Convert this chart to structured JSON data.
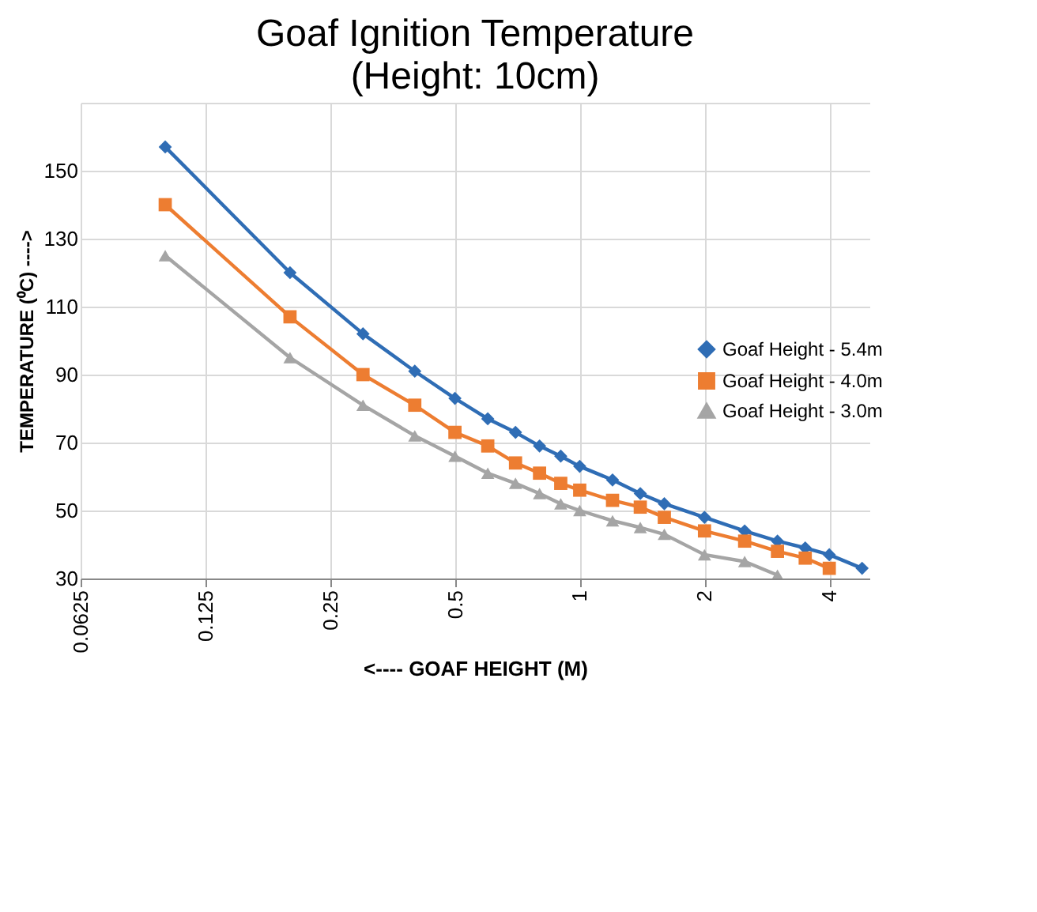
{
  "chart_data": {
    "type": "line",
    "title": "Goaf Ignition Temperature",
    "subtitle": "(Height: 10cm)",
    "xlabel": "<---- GOAF HEIGHT (M)",
    "ylabel": "TEMPERATURE (⁰C) ---->",
    "log": "x",
    "grid": true,
    "legend": "right",
    "line_style": "solid",
    "xlim": [
      0.0625,
      5
    ],
    "xticks": [
      0.0625,
      0.125,
      0.25,
      0.5,
      1,
      2,
      4
    ],
    "ylim": [
      30,
      170
    ],
    "yticks": [
      30,
      50,
      70,
      90,
      110,
      130,
      150,
      {
        "value": 170,
        "label": null
      }
    ],
    "series": [
      {
        "name": "Goaf Height - 5.4m",
        "color": "#2f6db5",
        "marker": "diamond",
        "x": [
          0.1,
          0.2,
          0.3,
          0.4,
          0.5,
          0.6,
          0.7,
          0.8,
          0.9,
          1.0,
          1.2,
          1.4,
          1.6,
          2.0,
          2.5,
          3.0,
          3.5,
          4.0,
          4.8
        ],
        "values": [
          157,
          120,
          102,
          91,
          83,
          77,
          73,
          69,
          66,
          63,
          59,
          55,
          52,
          48,
          44,
          41,
          39,
          37,
          33
        ]
      },
      {
        "name": "Goaf Height - 4.0m",
        "color": "#ed7d31",
        "marker": "square",
        "x": [
          0.1,
          0.2,
          0.3,
          0.4,
          0.5,
          0.6,
          0.7,
          0.8,
          0.9,
          1.0,
          1.2,
          1.4,
          1.6,
          2.0,
          2.5,
          3.0,
          3.5,
          4.0
        ],
        "values": [
          140,
          107,
          90,
          81,
          73,
          69,
          64,
          61,
          58,
          56,
          53,
          51,
          48,
          44,
          41,
          38,
          36,
          33
        ]
      },
      {
        "name": "Goaf Height - 3.0m",
        "color": "#a5a5a5",
        "marker": "triangle",
        "x": [
          0.1,
          0.2,
          0.3,
          0.4,
          0.5,
          0.6,
          0.7,
          0.8,
          0.9,
          1.0,
          1.2,
          1.4,
          1.6,
          2.0,
          2.5,
          3.0
        ],
        "values": [
          125,
          95,
          81,
          72,
          66,
          61,
          58,
          55,
          52,
          50,
          47,
          45,
          43,
          37,
          35,
          31
        ]
      }
    ]
  }
}
